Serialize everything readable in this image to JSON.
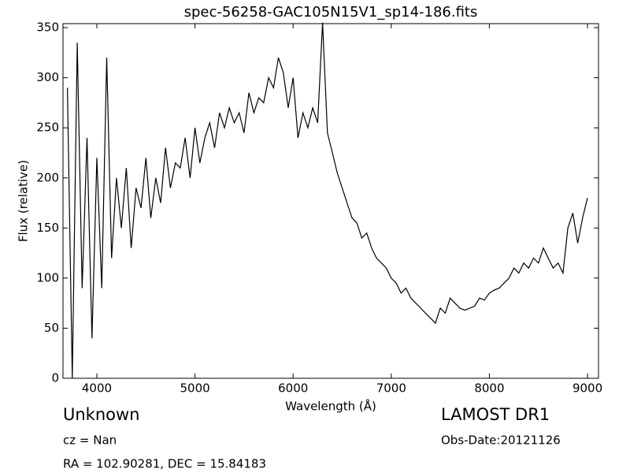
{
  "chart_data": {
    "type": "line",
    "title": "spec-56258-GAC105N15V1_sp14-186.fits",
    "x_label": "Wavelength (Å)",
    "y_label": "Flux (relative)",
    "x": [
      3700,
      3750,
      3800,
      3850,
      3900,
      3950,
      4000,
      4050,
      4100,
      4150,
      4200,
      4250,
      4300,
      4350,
      4400,
      4450,
      4500,
      4550,
      4600,
      4650,
      4700,
      4750,
      4800,
      4850,
      4900,
      4950,
      5000,
      5050,
      5100,
      5150,
      5200,
      5250,
      5300,
      5350,
      5400,
      5450,
      5500,
      5550,
      5600,
      5650,
      5700,
      5750,
      5800,
      5850,
      5900,
      5950,
      6000,
      6050,
      6100,
      6150,
      6200,
      6250,
      6300,
      6350,
      6400,
      6450,
      6500,
      6550,
      6600,
      6650,
      6700,
      6750,
      6800,
      6850,
      6900,
      6950,
      7000,
      7050,
      7100,
      7150,
      7200,
      7250,
      7300,
      7350,
      7400,
      7450,
      7500,
      7550,
      7600,
      7650,
      7700,
      7750,
      7800,
      7850,
      7900,
      7950,
      8000,
      8050,
      8100,
      8150,
      8200,
      8250,
      8300,
      8350,
      8400,
      8450,
      8500,
      8550,
      8600,
      8650,
      8700,
      8750,
      8800,
      8850,
      8900,
      8950,
      9000
    ],
    "series": [
      {
        "name": "flux",
        "color": "#000000",
        "values": [
          290,
          0,
          335,
          90,
          240,
          40,
          220,
          90,
          320,
          120,
          200,
          150,
          210,
          130,
          190,
          170,
          220,
          160,
          200,
          175,
          230,
          190,
          215,
          210,
          240,
          200,
          250,
          215,
          240,
          255,
          230,
          265,
          250,
          270,
          255,
          265,
          245,
          285,
          265,
          280,
          275,
          300,
          290,
          320,
          305,
          270,
          300,
          240,
          265,
          250,
          270,
          255,
          355,
          245,
          225,
          205,
          190,
          175,
          160,
          155,
          140,
          145,
          130,
          120,
          115,
          110,
          100,
          95,
          85,
          90,
          80,
          75,
          70,
          65,
          60,
          55,
          70,
          65,
          80,
          75,
          70,
          68,
          70,
          72,
          80,
          78,
          85,
          88,
          90,
          95,
          100,
          110,
          105,
          115,
          110,
          120,
          115,
          130,
          120,
          110,
          115,
          105,
          150,
          165,
          135,
          160,
          180
        ]
      }
    ],
    "xlim": [
      3655,
      9112
    ],
    "ylim": [
      0,
      354
    ],
    "xticks": [
      4000,
      5000,
      6000,
      7000,
      8000,
      9000
    ],
    "yticks": [
      0,
      50,
      100,
      150,
      200,
      250,
      300,
      350
    ]
  },
  "annotations": {
    "object_class": "Unknown",
    "survey": "LAMOST DR1",
    "redshift": "cz = Nan",
    "obs_date": "Obs-Date:20121126",
    "coords": "RA = 102.90281, DEC = 15.84183"
  }
}
